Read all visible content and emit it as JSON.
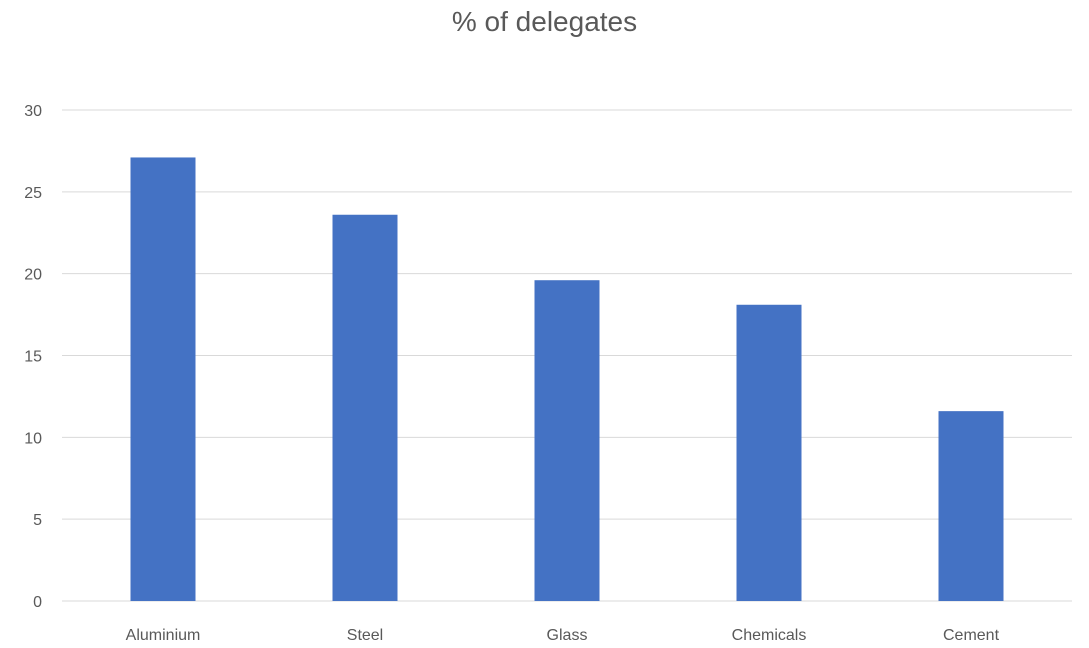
{
  "chart_data": {
    "type": "bar",
    "title": "% of delegates",
    "xlabel": "",
    "ylabel": "",
    "categories": [
      "Aluminium",
      "Steel",
      "Glass",
      "Chemicals",
      "Cement"
    ],
    "values": [
      27.1,
      23.6,
      19.6,
      18.1,
      11.6
    ],
    "ylim": [
      0,
      30
    ],
    "yticks": [
      0,
      5,
      10,
      15,
      20,
      25,
      30
    ],
    "grid": true,
    "legend": "none",
    "bar_color": "#4472C4",
    "grid_color": "#D9D9D9",
    "text_color": "#595959"
  }
}
